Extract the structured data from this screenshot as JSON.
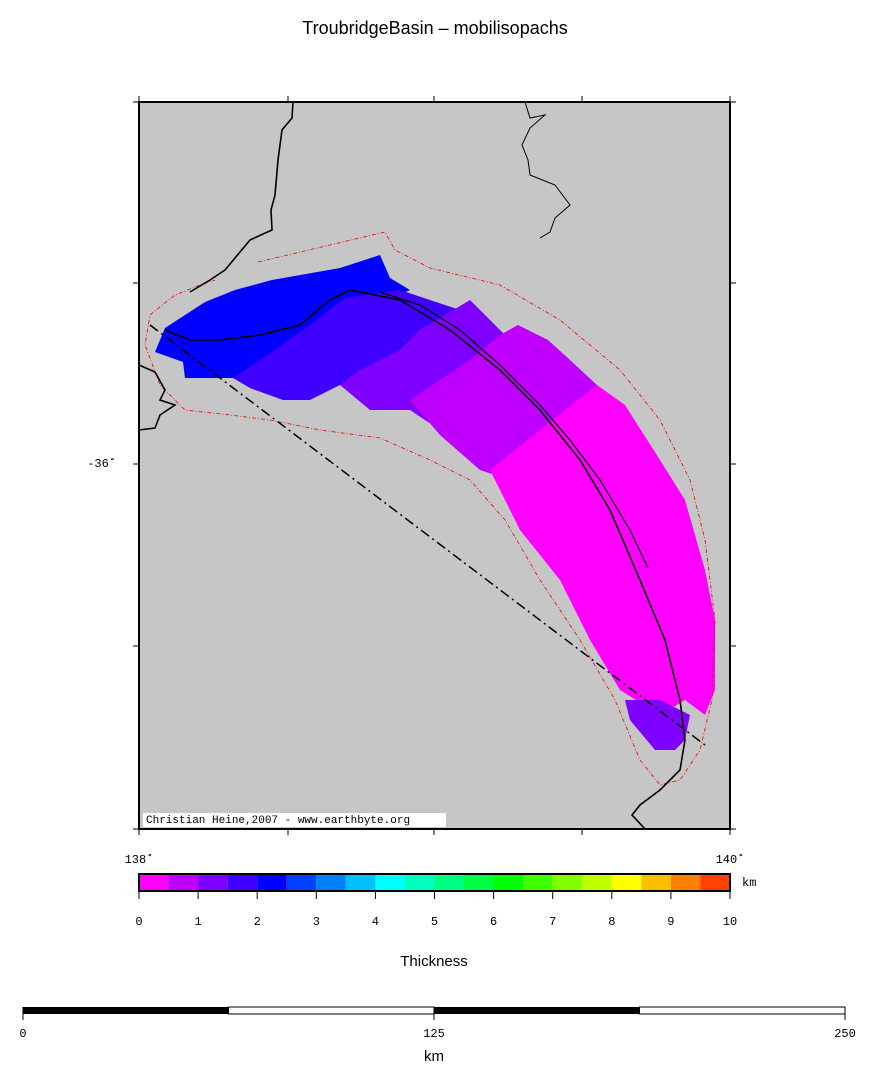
{
  "title": "TroubridgeBasin – mobilisopachs",
  "map": {
    "lat_labels": [
      "-36˚"
    ],
    "lon_labels": [
      "138˚",
      "140˚"
    ],
    "credit": "Christian Heine,2007 - www.earthbyte.org"
  },
  "colorbar": {
    "label": "Thickness",
    "unit": "km",
    "range": [
      0,
      10
    ],
    "ticks": [
      0,
      1,
      2,
      3,
      4,
      5,
      6,
      7,
      8,
      9,
      10
    ],
    "colors": [
      "#ff00ff",
      "#bf00ff",
      "#8000ff",
      "#4000ff",
      "#0000ff",
      "#0040ff",
      "#0080ff",
      "#00bfff",
      "#00ffff",
      "#00ffbf",
      "#00ff80",
      "#00ff40",
      "#00ff00",
      "#40ff00",
      "#80ff00",
      "#bfff00",
      "#ffff00",
      "#ffbf00",
      "#ff8000",
      "#ff4000"
    ]
  },
  "scalebar": {
    "unit": "km",
    "range": [
      0,
      250
    ],
    "ticks": [
      0,
      125,
      250
    ]
  }
}
